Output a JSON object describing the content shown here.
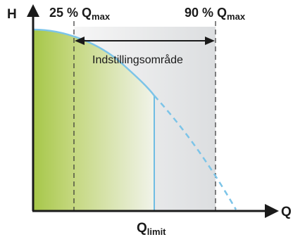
{
  "axes": {
    "y_label": "H",
    "x_label": "Q"
  },
  "markers": {
    "left": {
      "percent_text": "25 % Q",
      "subscript": "max"
    },
    "right": {
      "percent_text": "90 % Q",
      "subscript": "max"
    }
  },
  "range": {
    "label": "Indstillingsområde"
  },
  "limit": {
    "main": "Q",
    "subscript": "limit"
  },
  "colors": {
    "axis": "#1a1a1a",
    "curve": "#7cc4e8",
    "fill_green": "#a8c84a",
    "gray_region": "#e2e4e6",
    "dashed_marker": "#333333"
  }
}
